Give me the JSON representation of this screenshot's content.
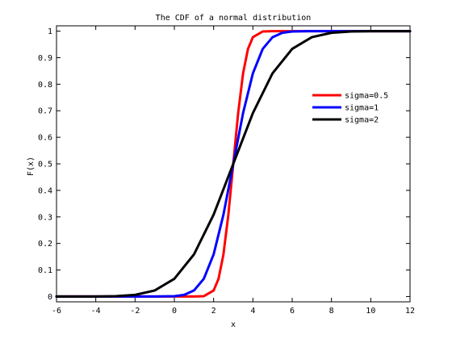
{
  "chart_data": {
    "type": "line",
    "title": "The CDF of a normal distribution",
    "xlabel": "x",
    "ylabel": "F(x)",
    "xlim": [
      -6,
      12
    ],
    "ylim": [
      -0.02,
      1.02
    ],
    "xticks": [
      -6,
      -4,
      -2,
      0,
      2,
      4,
      6,
      8,
      10,
      12
    ],
    "yticks": [
      0,
      0.1,
      0.2,
      0.3,
      0.4,
      0.5,
      0.6,
      0.7,
      0.8,
      0.9,
      1
    ],
    "x_tick_labels": [
      "-6",
      "-4",
      "-2",
      "0",
      "2",
      "4",
      "6",
      "8",
      "10",
      "12"
    ],
    "y_tick_labels": [
      "0",
      "0.1",
      "0.2",
      "0.3",
      "0.4",
      "0.5",
      "0.6",
      "0.7",
      "0.8",
      "0.9",
      "1"
    ],
    "grid": false,
    "legend_position": "right",
    "series": [
      {
        "name": "sigma=0.5",
        "color": "#ff0000",
        "x": [
          -6,
          -4,
          -2,
          0,
          1,
          1.5,
          2,
          2.25,
          2.5,
          2.75,
          3,
          3.25,
          3.5,
          3.75,
          4,
          4.5,
          5,
          6,
          8,
          10,
          12
        ],
        "y": [
          0,
          0,
          0,
          0,
          3e-05,
          0.0013,
          0.0228,
          0.0668,
          0.1587,
          0.3085,
          0.5,
          0.6915,
          0.8413,
          0.9332,
          0.9772,
          0.9987,
          1,
          1,
          1,
          1,
          1
        ]
      },
      {
        "name": "sigma=1",
        "color": "#0000ff",
        "x": [
          -6,
          -4,
          -2,
          -1,
          0,
          0.5,
          1,
          1.5,
          2,
          2.5,
          3,
          3.5,
          4,
          4.5,
          5,
          5.5,
          6,
          7,
          8,
          10,
          12
        ],
        "y": [
          0,
          0,
          0,
          3e-05,
          0.0013,
          0.0062,
          0.0228,
          0.0668,
          0.1587,
          0.3085,
          0.5,
          0.6915,
          0.8413,
          0.9332,
          0.9772,
          0.9938,
          0.9987,
          1,
          1,
          1,
          1
        ]
      },
      {
        "name": "sigma=2",
        "color": "#000000",
        "x": [
          -6,
          -5,
          -4,
          -3,
          -2,
          -1,
          0,
          1,
          2,
          3,
          4,
          5,
          6,
          7,
          8,
          9,
          10,
          11,
          12
        ],
        "y": [
          0,
          3e-05,
          0.0002,
          0.0013,
          0.0062,
          0.0228,
          0.0668,
          0.1587,
          0.3085,
          0.5,
          0.6915,
          0.8413,
          0.9332,
          0.9772,
          0.9938,
          0.9987,
          0.9998,
          1,
          1
        ]
      }
    ]
  }
}
